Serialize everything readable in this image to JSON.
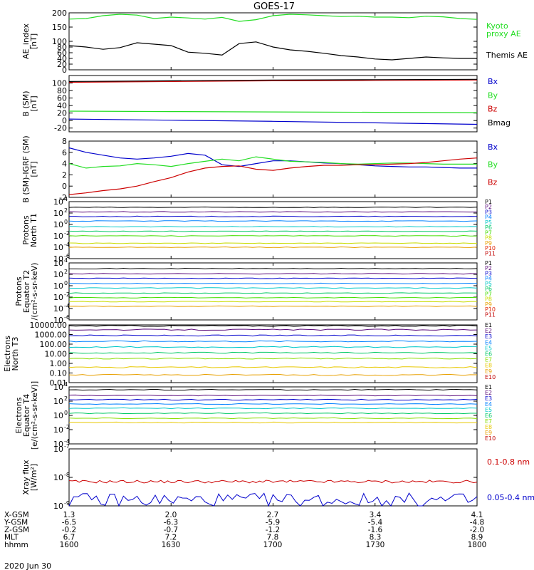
{
  "title": "GOES-17",
  "date_label": "2020 Jun 30",
  "colors": {
    "black": "#000000",
    "red": "#cc0000",
    "green": "#22dd22",
    "blue": "#0000cc",
    "bright_green": "#11ee11"
  },
  "chart_data": [
    {
      "type": "line",
      "id": "ae",
      "ylabel": "AE_index\n[nT]",
      "ylim": [
        0,
        200
      ],
      "yticks": [
        "0",
        "20",
        "40",
        "60",
        "80",
        "100",
        "150",
        "200"
      ],
      "ytick_values": [
        0,
        20,
        40,
        60,
        80,
        100,
        150,
        200
      ],
      "x": [
        1600,
        1605,
        1610,
        1615,
        1620,
        1625,
        1630,
        1635,
        1640,
        1645,
        1650,
        1655,
        1700,
        1705,
        1710,
        1715,
        1720,
        1725,
        1730,
        1735,
        1740,
        1745,
        1750,
        1755,
        1800
      ],
      "series": [
        {
          "name": "Kyoto\nproxy AE",
          "color": "#22dd22",
          "values": [
            178,
            180,
            190,
            195,
            192,
            180,
            185,
            182,
            178,
            184,
            170,
            176,
            190,
            195,
            193,
            190,
            187,
            188,
            185,
            185,
            183,
            188,
            186,
            180,
            177
          ]
        },
        {
          "name": "Themis AE",
          "color": "#000000",
          "values": [
            85,
            80,
            72,
            78,
            95,
            90,
            85,
            62,
            58,
            52,
            92,
            98,
            80,
            70,
            65,
            58,
            50,
            45,
            38,
            35,
            40,
            45,
            42,
            40,
            40
          ]
        }
      ]
    },
    {
      "type": "line",
      "id": "bsm",
      "ylabel": "B (SM)\n[nT]",
      "ylim": [
        -30,
        120
      ],
      "yticks": [
        "-20",
        "0",
        "20",
        "40",
        "60",
        "80",
        "100"
      ],
      "ytick_values": [
        -20,
        0,
        20,
        40,
        60,
        80,
        100
      ],
      "legend": [
        "Bx",
        "By",
        "Bz",
        "Bmag"
      ],
      "x": [
        1600,
        1630,
        1700,
        1730,
        1800
      ],
      "series": [
        {
          "name": "Bx",
          "color": "#0000cc",
          "values": [
            4,
            1,
            -2,
            -6,
            -10
          ]
        },
        {
          "name": "By",
          "color": "#22dd22",
          "values": [
            25,
            24,
            23,
            22,
            21
          ]
        },
        {
          "name": "Bz",
          "color": "#cc0000",
          "values": [
            102,
            104,
            106,
            107,
            108
          ]
        },
        {
          "name": "Bmag",
          "color": "#000000",
          "values": [
            104,
            106,
            108,
            109,
            110
          ]
        }
      ]
    },
    {
      "type": "line",
      "id": "bdiff",
      "ylabel": "B (SM)-IGRF (SM)\n[nT]",
      "ylim": [
        -2,
        8
      ],
      "yticks": [
        "-2",
        "0",
        "2",
        "4",
        "6",
        "8"
      ],
      "ytick_values": [
        -2,
        0,
        2,
        4,
        6,
        8
      ],
      "legend": [
        "Bx",
        "By",
        "Bz"
      ],
      "x": [
        1600,
        1605,
        1610,
        1615,
        1620,
        1625,
        1630,
        1635,
        1640,
        1645,
        1650,
        1655,
        1700,
        1705,
        1710,
        1715,
        1720,
        1725,
        1730,
        1735,
        1740,
        1745,
        1750,
        1755,
        1800
      ],
      "series": [
        {
          "name": "Bx",
          "color": "#0000cc",
          "values": [
            6.8,
            6.0,
            5.5,
            5.0,
            4.8,
            5.0,
            5.3,
            5.8,
            5.5,
            3.8,
            3.5,
            4.0,
            4.5,
            4.5,
            4.3,
            4.1,
            4.0,
            3.8,
            3.6,
            3.5,
            3.4,
            3.4,
            3.3,
            3.2,
            3.2
          ]
        },
        {
          "name": "By",
          "color": "#22dd22",
          "values": [
            4.0,
            3.2,
            3.5,
            3.6,
            4.0,
            3.8,
            3.5,
            4.0,
            4.4,
            4.8,
            4.5,
            5.2,
            4.8,
            4.4,
            4.3,
            4.2,
            4.0,
            3.9,
            4.0,
            4.1,
            4.1,
            4.0,
            3.9,
            3.9,
            3.9
          ]
        },
        {
          "name": "Bz",
          "color": "#cc0000",
          "values": [
            -1.5,
            -1.2,
            -0.8,
            -0.5,
            0.0,
            0.8,
            1.5,
            2.5,
            3.2,
            3.5,
            3.6,
            3.0,
            2.8,
            3.2,
            3.5,
            3.7,
            3.7,
            3.8,
            3.8,
            3.9,
            4.0,
            4.2,
            4.5,
            4.8,
            5.0
          ]
        }
      ]
    },
    {
      "type": "line",
      "id": "protons_t1",
      "ylabel": "Protons\nNorth T1",
      "yscale": "log",
      "ylim_exp": [
        -6,
        4
      ],
      "ytick_exps": [
        -6,
        -4,
        -2,
        0,
        2,
        4
      ],
      "legend": [
        "P1",
        "P2",
        "P3",
        "P4",
        "P5",
        "P6",
        "P7",
        "P8",
        "P9",
        "P10",
        "P11"
      ],
      "legend_colors": [
        "#000000",
        "#5a0a7a",
        "#0000cc",
        "#0080ff",
        "#00c8c8",
        "#00c864",
        "#44dd00",
        "#c8dc00",
        "#e8a000",
        "#e02000",
        "#c00000"
      ],
      "channel_levels_exp": [
        3.0,
        2.2,
        1.4,
        0.6,
        -0.4,
        -1.2,
        -2.0,
        -3.3,
        -4.0
      ]
    },
    {
      "type": "line",
      "id": "protons_t2",
      "ylabel": "Protons\nEquator T2\n/(cm²-s-sr-keV)",
      "yscale": "log",
      "ylim_exp": [
        -6,
        4
      ],
      "ytick_exps": [
        -6,
        -4,
        -2,
        0,
        2,
        4
      ],
      "legend": [
        "P1",
        "P2",
        "P3",
        "P4",
        "P5",
        "P6",
        "P7",
        "P8",
        "P9",
        "P10",
        "P11"
      ],
      "legend_colors": [
        "#000000",
        "#5a0a7a",
        "#0000cc",
        "#0080ff",
        "#00c8c8",
        "#00c864",
        "#44dd00",
        "#c8dc00",
        "#e8a000",
        "#e02000",
        "#c00000"
      ],
      "channel_levels_exp": [
        3.0,
        2.1,
        1.3,
        0.4,
        -0.4,
        -1.3,
        -2.1,
        -2.8,
        -3.6
      ]
    },
    {
      "type": "line",
      "id": "electrons_t3",
      "ylabel": "Electrons\nNorth T3",
      "yscale": "log",
      "ytick_labels": [
        "0.01",
        "0.10",
        "1.00",
        "10.00",
        "100.00",
        "1000.00",
        "10000.00"
      ],
      "ytick_exps": [
        -2,
        -1,
        0,
        1,
        2,
        3,
        4
      ],
      "ylim_exp": [
        -2,
        4
      ],
      "legend": [
        "E1",
        "E2",
        "E3",
        "E4",
        "E5",
        "E6",
        "E7",
        "E8",
        "E9",
        "E10"
      ],
      "legend_colors": [
        "#000000",
        "#5a0a7a",
        "#0000cc",
        "#0080ff",
        "#00c8c8",
        "#00c864",
        "#88dd00",
        "#e8c800",
        "#e8a000",
        "#c00000"
      ],
      "channel_levels_exp": [
        3.9,
        3.5,
        2.9,
        2.3,
        1.7,
        1.1,
        0.5,
        -0.4,
        -1.2
      ]
    },
    {
      "type": "line",
      "id": "electrons_t4",
      "ylabel": "Electrons\nEquator T4\n[e/(cm²-s-sr-keV)]",
      "yscale": "log",
      "ylim_exp": [
        -4,
        4
      ],
      "ytick_exps": [
        -4,
        -2,
        0,
        2,
        4
      ],
      "legend": [
        "E1",
        "E2",
        "E3",
        "E4",
        "E5",
        "E6",
        "E7",
        "E8",
        "E9",
        "E10"
      ],
      "legend_colors": [
        "#000000",
        "#5a0a7a",
        "#0000cc",
        "#0080ff",
        "#00c8c8",
        "#00c864",
        "#88dd00",
        "#e8c800",
        "#e8a000",
        "#c00000"
      ],
      "channel_levels_exp": [
        3.6,
        2.8,
        2.2,
        1.6,
        1.0,
        0.3,
        -0.4,
        -1.0
      ]
    },
    {
      "type": "line",
      "id": "xray",
      "ylabel": "Xray flux\n[W/m²]",
      "yscale": "log",
      "ylim_exp": [
        -9,
        -7
      ],
      "ytick_exps": [
        -9,
        -8,
        -7
      ],
      "legend": [
        "0.1-0.8 nm",
        "0.05-0.4 nm"
      ],
      "legend_colors": [
        "#cc0000",
        "#0000cc"
      ],
      "series": [
        {
          "name": "0.1-0.8 nm",
          "color": "#cc0000",
          "level_exp": -8.15
        },
        {
          "name": "0.05-0.4 nm",
          "color": "#0000cc",
          "level_exp": -8.85
        }
      ]
    }
  ],
  "xaxis": {
    "rows": [
      {
        "label": "X-GSM",
        "values": [
          "1.3",
          "2.0",
          "2.7",
          "3.4",
          "4.1"
        ]
      },
      {
        "label": "Y-GSM",
        "values": [
          "-6.5",
          "-6.3",
          "-5.9",
          "-5.4",
          "-4.8"
        ]
      },
      {
        "label": "Z-GSM",
        "values": [
          "-0.2",
          "-0.7",
          "-1.2",
          "-1.6",
          "-2.0"
        ]
      },
      {
        "label": "MLT",
        "values": [
          "6.7",
          "7.2",
          "7.8",
          "8.3",
          "8.9"
        ]
      },
      {
        "label": "hhmm",
        "values": [
          "1600",
          "1630",
          "1700",
          "1730",
          "1800"
        ]
      }
    ]
  }
}
